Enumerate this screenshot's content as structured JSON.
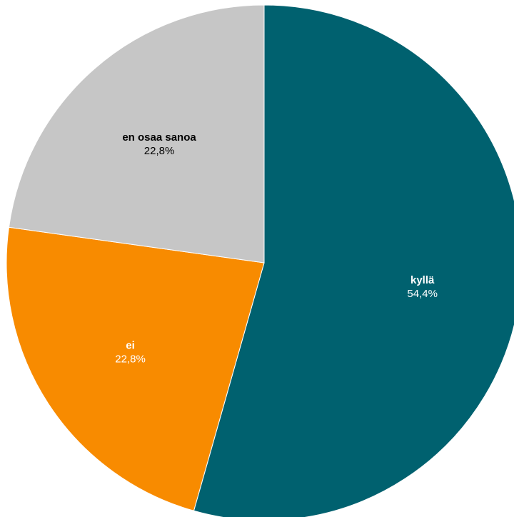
{
  "chart_data": {
    "type": "pie",
    "title": "",
    "slices": [
      {
        "label": "kyllä",
        "value": 54.4,
        "value_text": "54,4%",
        "color": "#00616f",
        "label_color": "#ffffff"
      },
      {
        "label": "ei",
        "value": 22.8,
        "value_text": "22,8%",
        "color": "#f88b00",
        "label_color": "#ffffff"
      },
      {
        "label": "en osaa sanoa",
        "value": 22.8,
        "value_text": "22,8%",
        "color": "#c6c6c6",
        "label_color": "#000000"
      }
    ],
    "start_angle": "12 o'clock",
    "direction": "clockwise",
    "legend": "none"
  }
}
